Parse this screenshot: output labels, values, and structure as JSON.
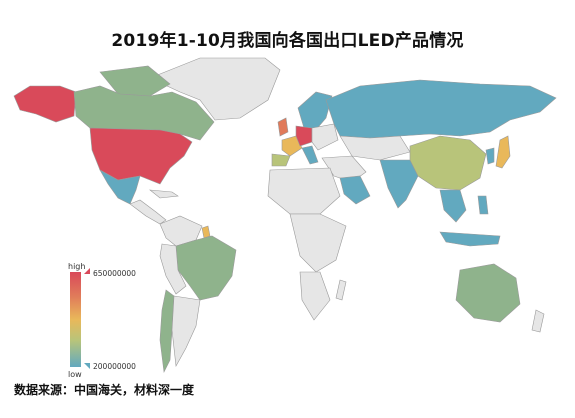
{
  "title": "2019年1-10月我国向各国出口LED产品情况",
  "legend": {
    "high_label": "high",
    "low_label": "low",
    "max_value": "650000000",
    "min_value": "200000000"
  },
  "source": "数据来源：中国海关，材料深一度",
  "colors": {
    "high": "#d94a5a",
    "upper": "#e07a5a",
    "mid": "#e9b85a",
    "lower": "#b8c47a",
    "low": "#62a9bf",
    "green": "#8fb38c",
    "no_data": "#e6e6e6",
    "border": "#9a9a9a"
  }
}
